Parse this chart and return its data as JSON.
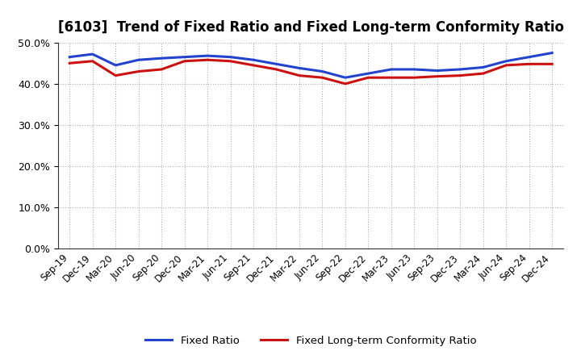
{
  "title": "[6103]  Trend of Fixed Ratio and Fixed Long-term Conformity Ratio",
  "x_labels": [
    "Sep-19",
    "Dec-19",
    "Mar-20",
    "Jun-20",
    "Sep-20",
    "Dec-20",
    "Mar-21",
    "Jun-21",
    "Sep-21",
    "Dec-21",
    "Mar-22",
    "Jun-22",
    "Sep-22",
    "Dec-22",
    "Mar-23",
    "Jun-23",
    "Sep-23",
    "Dec-23",
    "Mar-24",
    "Jun-24",
    "Sep-24",
    "Dec-24"
  ],
  "fixed_ratio": [
    46.5,
    47.2,
    44.5,
    45.8,
    46.2,
    46.5,
    46.8,
    46.5,
    45.8,
    44.8,
    43.8,
    43.0,
    41.5,
    42.5,
    43.5,
    43.5,
    43.2,
    43.5,
    44.0,
    45.5,
    46.5,
    47.5
  ],
  "fixed_lt_ratio": [
    45.0,
    45.5,
    42.0,
    43.0,
    43.5,
    45.5,
    45.8,
    45.5,
    44.5,
    43.5,
    42.0,
    41.5,
    40.0,
    41.5,
    41.5,
    41.5,
    41.8,
    42.0,
    42.5,
    44.5,
    44.8,
    44.8
  ],
  "blue_color": "#2244CC",
  "red_color": "#CC1111",
  "ylim": [
    0,
    50
  ],
  "yticks": [
    0,
    10,
    20,
    30,
    40,
    50
  ],
  "background_color": "#ffffff",
  "grid_color": "#999999",
  "title_fontsize": 12,
  "legend_labels": [
    "Fixed Ratio",
    "Fixed Long-term Conformity Ratio"
  ]
}
